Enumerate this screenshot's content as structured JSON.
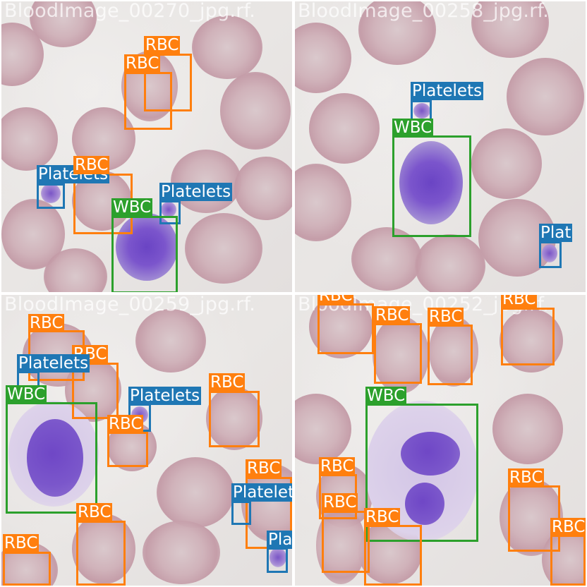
{
  "legend_colors": {
    "RBC": "#ff7f0e",
    "WBC": "#2ca02c",
    "Platelets": "#1f77b4"
  },
  "tiles": [
    {
      "watermark": "BloodImage_00270_jpg.rf.",
      "labels": [
        "RBC",
        "RBC",
        "RBC",
        "Platelets",
        "Platelets",
        "WBC"
      ]
    },
    {
      "watermark": "BloodImage_00258_jpg.rf.",
      "labels": [
        "Platelets",
        "WBC",
        "Plat"
      ]
    },
    {
      "watermark": "BloodImage_00259_jpg.rf.",
      "labels": [
        "RBC",
        "RBC",
        "Platelets",
        "WBC",
        "Platelets",
        "RBC",
        "RBC",
        "RBC",
        "Platelets",
        "RBC",
        "RBC",
        "Pla"
      ]
    },
    {
      "watermark": "BloodImage_00252_jpg.rf.",
      "labels": [
        "RBC",
        "RBC",
        "RBC",
        "RBC",
        "WBC",
        "RBC",
        "RBC",
        "RBC",
        "RBC",
        "RBC"
      ]
    }
  ]
}
